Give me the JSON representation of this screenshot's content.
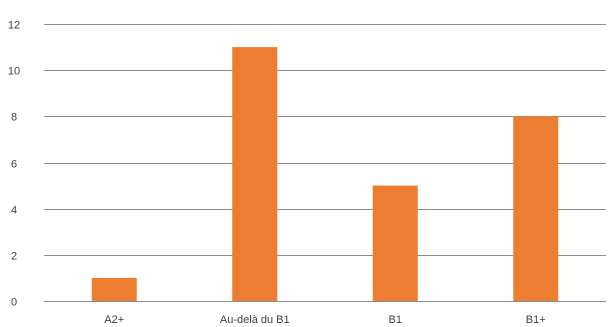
{
  "chart_data": {
    "type": "bar",
    "title": "",
    "xlabel": "",
    "ylabel": "",
    "categories": [
      "A2+",
      "Au-delà du B1",
      "B1",
      "B1+"
    ],
    "values": [
      1,
      11,
      5,
      8
    ],
    "ylim": [
      0,
      12
    ],
    "yticks": [
      0,
      2,
      4,
      6,
      8,
      10,
      12
    ],
    "grid": true,
    "legend": "none",
    "bar_color": "#ED7D31"
  }
}
